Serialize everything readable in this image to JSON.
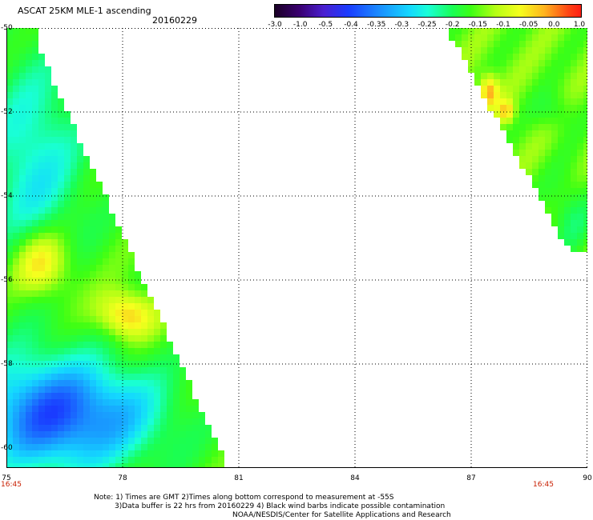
{
  "header": {
    "title": "ASCAT 25KM MLE-1 ascending",
    "date": "20160229"
  },
  "colorbar": {
    "labels": [
      "-3.0",
      "-1.0",
      "-0.5",
      "-0.4",
      "-0.35",
      "-0.3",
      "-0.25",
      "-0.2",
      "-0.15",
      "-0.1",
      "-0.05",
      "0.0",
      "1.0"
    ]
  },
  "axes": {
    "y_ticks": [
      "-50",
      "-52",
      "-54",
      "-56",
      "-58",
      "-60"
    ],
    "x_ticks": [
      "75",
      "78",
      "81",
      "84",
      "87",
      "90"
    ],
    "time_left": "16:45",
    "time_right": "16:45"
  },
  "notes": {
    "line1": "Note: 1) Times are GMT 2)Times along bottom correspond to measurement at -55S",
    "line2": "3)Data buffer is 22 hrs from 20160229 4) Black wind barbs indicate possible contamination",
    "line3": "NOAA/NESDIS/Center for Satellite Applications and Research"
  },
  "colors": {
    "gridline": "#000000",
    "time_label": "#c81e00"
  }
}
